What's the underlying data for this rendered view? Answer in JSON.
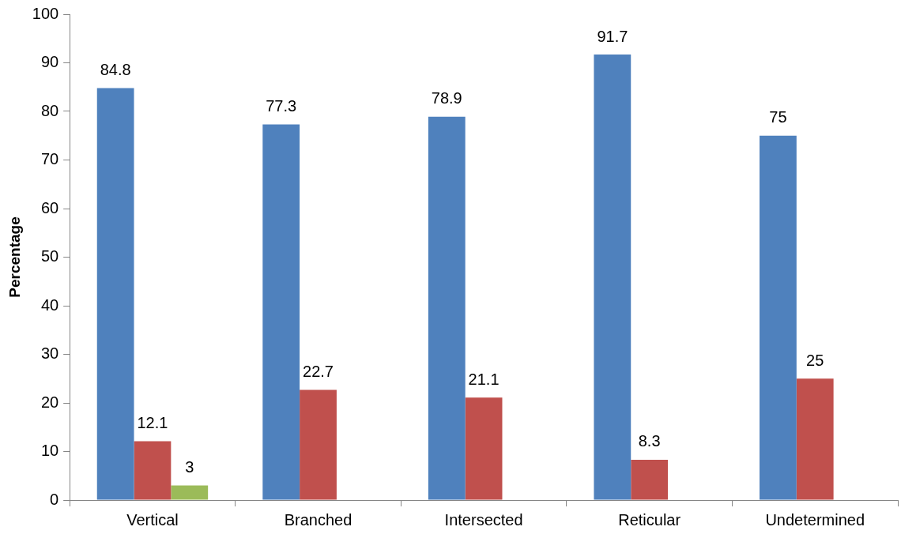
{
  "chart_data": {
    "type": "bar",
    "ylabel": "Percentage",
    "categories": [
      "Vertical",
      "Branched",
      "Intersected",
      "Reticular",
      "Undetermined"
    ],
    "series": [
      {
        "color": "#4f81bd",
        "values": [
          84.8,
          77.3,
          78.9,
          91.7,
          75
        ]
      },
      {
        "color": "#c0504d",
        "values": [
          12.1,
          22.7,
          21.1,
          8.3,
          25
        ]
      },
      {
        "color": "#9bbb59",
        "values": [
          3,
          null,
          null,
          null,
          null
        ]
      }
    ],
    "ylim": [
      0,
      100
    ],
    "yticks": [
      0,
      10,
      20,
      30,
      40,
      50,
      60,
      70,
      80,
      90,
      100
    ],
    "data_labels": true
  }
}
